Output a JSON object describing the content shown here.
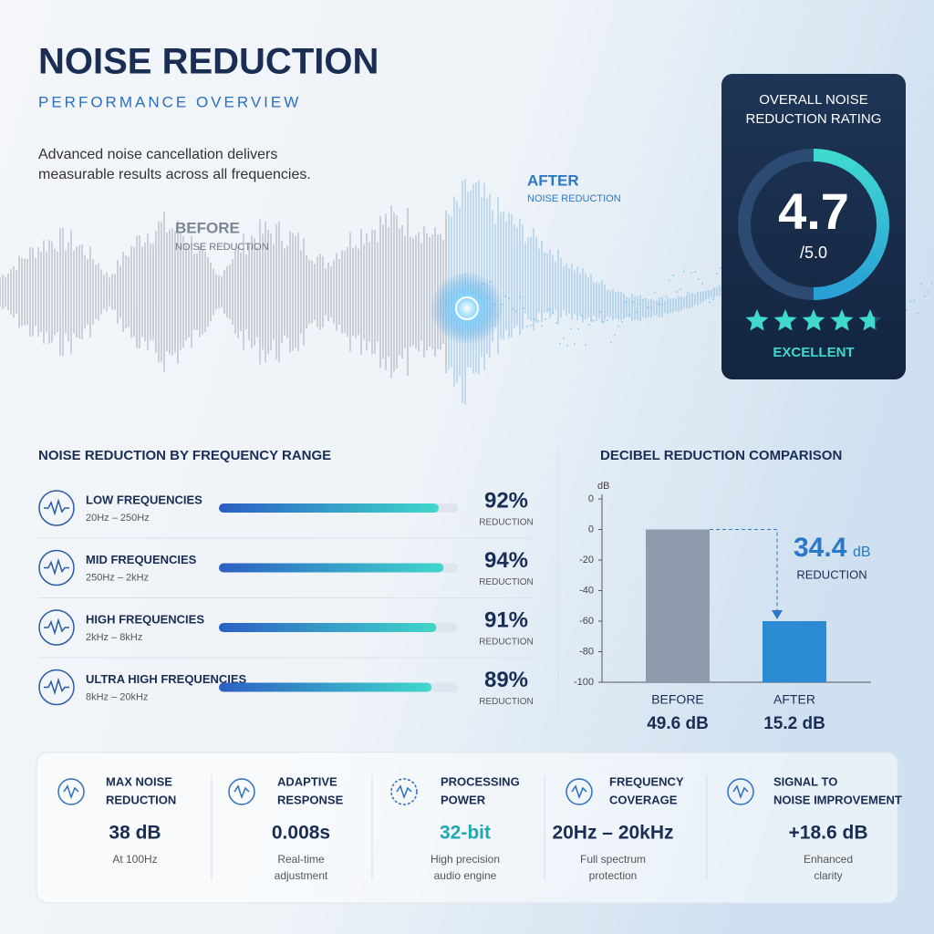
{
  "header": {
    "title": "NOISE REDUCTION",
    "subtitle": "PERFORMANCE OVERVIEW",
    "description": [
      "Advanced noise cancellation delivers",
      "measurable results across all frequencies."
    ]
  },
  "waveform": {
    "before": {
      "label": "BEFORE",
      "sublabel": "NOISE REDUCTION"
    },
    "after": {
      "label": "AFTER",
      "sublabel": "NOISE REDUCTION"
    }
  },
  "rating": {
    "title": [
      "OVERALL NOISE",
      "REDUCTION RATING"
    ],
    "score": 4.7,
    "max": {
      "value": 5,
      "label": "/5.0"
    },
    "verdict": "EXCELLENT"
  },
  "chart_data": [
    {
      "type": "progress",
      "title": "NOISE REDUCTION BY FREQUENCY RANGE",
      "categories": [
        "LOW FREQUENCIES",
        "MID FREQUENCIES",
        "HIGH FREQUENCIES",
        "ULTRA HIGH FREQUENCIES"
      ],
      "ranges": [
        "20Hz – 250Hz",
        "250Hz – 2kHz",
        "2kHz – 8kHz",
        "8kHz – 20kHz"
      ],
      "values": [
        92,
        94,
        91,
        89
      ],
      "value_labels": [
        "92%",
        "94%",
        "91%",
        "89%"
      ],
      "unit_label": "REDUCTION",
      "xlim": [
        0,
        100
      ],
      "color": [
        "#2b5fc4",
        "#40d8cc"
      ]
    },
    {
      "type": "bar",
      "title": "DECIBEL REDUCTION COMPARISON",
      "y_label": "dB",
      "categories": [
        "BEFORE",
        "AFTER"
      ],
      "values": [
        0,
        -60
      ],
      "readings": [
        "49.6 dB",
        "15.2 dB"
      ],
      "ylim": [
        -100,
        20
      ],
      "yticks": [
        {
          "value": 20,
          "label": "0"
        },
        0,
        -20,
        -40,
        -60,
        -80,
        -100
      ],
      "colors": [
        "#8f9bac",
        "#2a8ad2"
      ],
      "annotation": {
        "value": "34.4",
        "unit": "dB",
        "label": "REDUCTION"
      }
    }
  ],
  "stats": [
    {
      "title": [
        "MAX NOISE",
        "REDUCTION"
      ],
      "value": "38 dB",
      "caption": [
        "At 100Hz"
      ]
    },
    {
      "title": [
        "ADAPTIVE",
        "RESPONSE"
      ],
      "value": "0.008s",
      "caption": [
        "Real-time",
        "adjustment"
      ]
    },
    {
      "title": [
        "PROCESSING",
        "POWER"
      ],
      "value": "32-bit",
      "caption": [
        "High precision",
        "audio engine"
      ]
    },
    {
      "title": [
        "FREQUENCY",
        "COVERAGE"
      ],
      "value": "20Hz – 20kHz",
      "caption": [
        "Full spectrum",
        "protection"
      ]
    },
    {
      "title": [
        "SIGNAL TO",
        "NOISE IMPROVEMENT"
      ],
      "value": "+18.6 dB",
      "caption": [
        "Enhanced",
        "clarity"
      ]
    }
  ]
}
